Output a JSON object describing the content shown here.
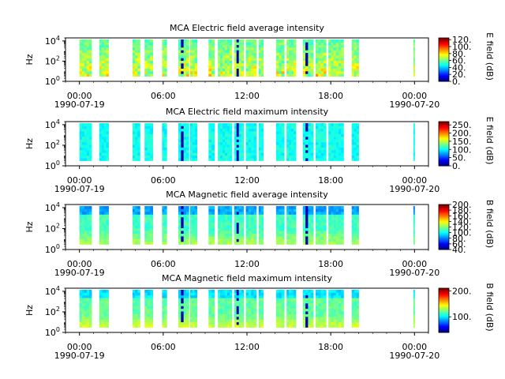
{
  "figure": {
    "title": "",
    "x_ticks": [
      "00:00",
      "06:00",
      "12:00",
      "18:00",
      "00:00"
    ],
    "x_dates": [
      "1990-07-19",
      "",
      "",
      "",
      "1990-07-20"
    ]
  },
  "chart_data": [
    {
      "type": "heatmap",
      "title": "MCA  Electric field average intensity",
      "ylabel": "Hz",
      "y_ticks": [
        "10^0",
        "10^2",
        "10^4"
      ],
      "colorbar_label": "E field (dB)",
      "colorbar_ticks": [
        "0.",
        "20.",
        "40.",
        "60.",
        "80.",
        "100.",
        "120."
      ],
      "colorbar_range": [
        0,
        125
      ],
      "x_range": [
        "1990-07-19 00:00",
        "1990-07-20 01:00"
      ],
      "y_range_hz": [
        1,
        20000
      ],
      "data_coverage_utc": [
        "00:00-00:52",
        "01:25-02:05",
        "03:48-04:20",
        "04:40-05:15",
        "05:55-06:15",
        "07:05-07:50",
        "07:55-08:25",
        "09:15-09:40",
        "09:55-10:55",
        "11:05-11:45",
        "11:55-12:40",
        "12:50-13:10",
        "14:05-14:40",
        "14:50-15:30",
        "16:00-16:45",
        "16:55-17:40",
        "17:50-18:55",
        "19:30-20:00",
        "23:55-23:57"
      ],
      "dominant_level_db": 65
    },
    {
      "type": "heatmap",
      "title": "MCA  Electric field maximum intensity",
      "ylabel": "Hz",
      "y_ticks": [
        "10^0",
        "10^2",
        "10^4"
      ],
      "colorbar_label": "E field (dB)",
      "colorbar_ticks": [
        "0.",
        "50.",
        "100.",
        "150.",
        "200.",
        "250."
      ],
      "colorbar_range": [
        0,
        270
      ],
      "x_range": [
        "1990-07-19 00:00",
        "1990-07-20 01:00"
      ],
      "y_range_hz": [
        1,
        20000
      ],
      "data_coverage_utc": [
        "00:00-00:52",
        "01:25-02:05",
        "03:48-04:20",
        "04:40-05:15",
        "05:55-06:15",
        "07:05-07:50",
        "07:55-08:25",
        "09:15-09:40",
        "09:55-10:55",
        "11:05-11:45",
        "11:55-12:40",
        "12:50-13:10",
        "14:05-14:40",
        "14:50-15:30",
        "16:00-16:45",
        "16:55-17:40",
        "17:50-18:55",
        "19:30-20:00",
        "23:55-23:57"
      ],
      "dominant_level_db": 110
    },
    {
      "type": "heatmap",
      "title": "MCA  Magnetic field average intensity",
      "ylabel": "Hz",
      "y_ticks": [
        "10^0",
        "10^2",
        "10^4"
      ],
      "colorbar_label": "B field (dB)",
      "colorbar_ticks": [
        "40.",
        "60.",
        "80.",
        "100.",
        "120.",
        "140.",
        "160.",
        "180.",
        "200."
      ],
      "colorbar_range": [
        40,
        200
      ],
      "x_range": [
        "1990-07-19 00:00",
        "1990-07-20 01:00"
      ],
      "y_range_hz": [
        1,
        20000
      ],
      "data_coverage_utc": [
        "00:00-00:52",
        "01:25-02:05",
        "03:48-04:20",
        "04:40-05:15",
        "05:55-06:15",
        "07:05-07:50",
        "07:55-08:25",
        "09:15-09:40",
        "09:55-10:55",
        "11:05-11:45",
        "11:55-12:40",
        "12:50-13:10",
        "14:05-14:40",
        "14:50-15:30",
        "16:00-16:45",
        "16:55-17:40",
        "17:50-18:55",
        "19:30-20:00",
        "23:55-23:57"
      ],
      "dominant_level_db": 110
    },
    {
      "type": "heatmap",
      "title": "MCA  Magnetic field maximum intensity",
      "ylabel": "Hz",
      "y_ticks": [
        "10^0",
        "10^2",
        "10^4"
      ],
      "colorbar_label": "B field (dB)",
      "colorbar_ticks": [
        "100.",
        "200."
      ],
      "colorbar_range": [
        40,
        210
      ],
      "x_range": [
        "1990-07-19 00:00",
        "1990-07-20 01:00"
      ],
      "y_range_hz": [
        1,
        20000
      ],
      "data_coverage_utc": [
        "00:00-00:52",
        "01:25-02:05",
        "03:48-04:20",
        "04:40-05:15",
        "05:55-06:15",
        "07:05-07:50",
        "07:55-08:25",
        "09:15-09:40",
        "09:55-10:55",
        "11:05-11:45",
        "11:55-12:40",
        "12:50-13:10",
        "14:05-14:40",
        "14:50-15:30",
        "16:00-16:45",
        "16:55-17:40",
        "17:50-18:55",
        "19:30-20:00",
        "23:55-23:57"
      ],
      "dominant_level_db": 120
    }
  ]
}
